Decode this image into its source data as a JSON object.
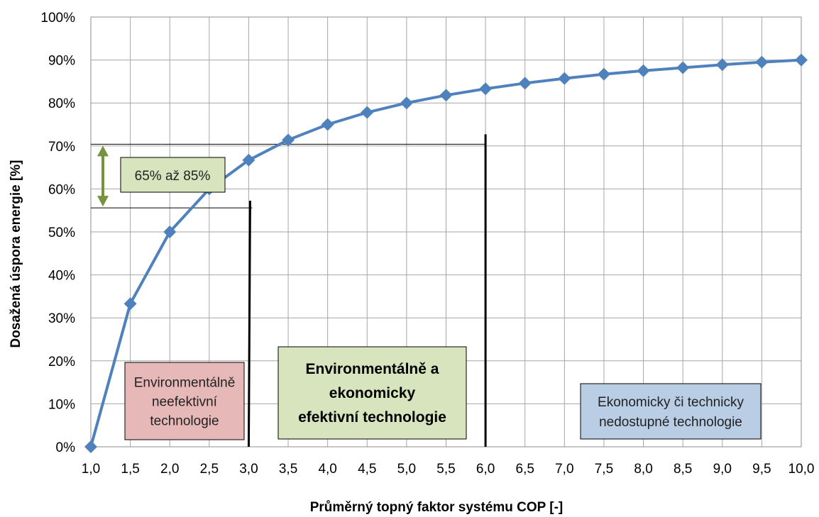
{
  "chart_data": {
    "type": "line",
    "title": "",
    "xlabel": "Průměrný topný faktor systému COP [-]",
    "ylabel": "Dosažená úspora energie [%]",
    "x": [
      1.0,
      1.5,
      2.0,
      2.5,
      3.0,
      3.5,
      4.0,
      4.5,
      5.0,
      5.5,
      6.0,
      6.5,
      7.0,
      7.5,
      8.0,
      8.5,
      9.0,
      9.5,
      10.0
    ],
    "x_tick_labels": [
      "1,0",
      "1,5",
      "2,0",
      "2,5",
      "3,0",
      "3,5",
      "4,0",
      "4,5",
      "5,0",
      "5,5",
      "6,0",
      "6,5",
      "7,0",
      "7,5",
      "8,0",
      "8,5",
      "9,0",
      "9,5",
      "10,0"
    ],
    "y_tick_labels": [
      "0%",
      "10%",
      "20%",
      "30%",
      "40%",
      "50%",
      "60%",
      "70%",
      "80%",
      "90%",
      "100%"
    ],
    "xlim": [
      1.0,
      10.0
    ],
    "ylim": [
      0,
      100
    ],
    "grid": true,
    "series": [
      {
        "color": "#4f81bd",
        "marker": "diamond",
        "values": [
          0,
          33.3,
          50.0,
          60.0,
          66.7,
          71.4,
          75.0,
          77.8,
          80.0,
          81.8,
          83.3,
          84.6,
          85.7,
          86.7,
          87.5,
          88.2,
          88.9,
          89.5,
          90.0
        ]
      }
    ],
    "annotations": {
      "range_label": "65% až 85%",
      "range_label_bg": "#d7e4bd",
      "range_arrow_color": "#77933c",
      "range_arrow_y": [
        55.6,
        70.4
      ],
      "vertical_lines_x": [
        3.0,
        6.0
      ],
      "boxes": [
        {
          "lines": [
            "Environmentálně",
            "neefektivní",
            "technologie"
          ],
          "bg": "#e6b9b8",
          "bold": false
        },
        {
          "lines": [
            "Environmentálně a",
            "ekonomicky",
            "efektivní technologie"
          ],
          "bg": "#d7e4bd",
          "bold": true
        },
        {
          "lines": [
            "Ekonomicky či technicky",
            "nedostupné technologie"
          ],
          "bg": "#b9cde5",
          "bold": false
        }
      ]
    }
  }
}
